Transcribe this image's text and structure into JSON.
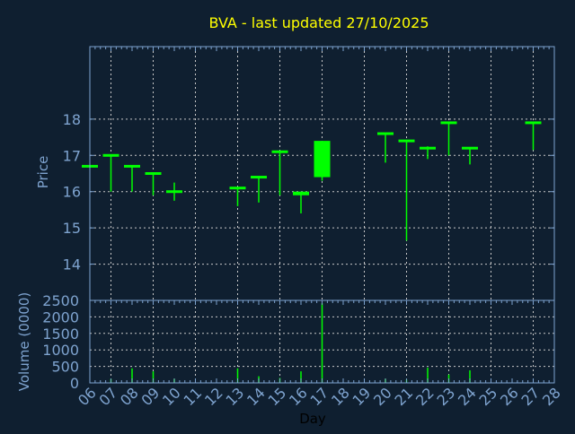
{
  "chart_data": {
    "type": "candlestick",
    "title": "BVA - last updated 27/10/2025",
    "xlabel": "Day",
    "ylabel_price": "Price",
    "ylabel_volume": "Volume (0000)",
    "x_ticks": [
      "06",
      "07",
      "08",
      "09",
      "10",
      "11",
      "12",
      "13",
      "14",
      "15",
      "16",
      "17",
      "18",
      "19",
      "20",
      "21",
      "22",
      "23",
      "24",
      "25",
      "26",
      "27",
      "28"
    ],
    "price_ticks": [
      14,
      15,
      16,
      17,
      18
    ],
    "price_ylim": [
      13,
      20
    ],
    "volume_ticks": [
      0,
      500,
      1000,
      1500,
      2000,
      2500
    ],
    "volume_ylim": [
      0,
      2500
    ],
    "grid": true,
    "colors": {
      "background": "#0f1f30",
      "candle": "#00ff00",
      "axis": "#7ea3cf",
      "grid": "#c8c8c8",
      "title": "#ffff00"
    },
    "candles": [
      {
        "day": "06",
        "open": 16.7,
        "high": 16.7,
        "low": 16.7,
        "close": 16.7
      },
      {
        "day": "07",
        "open": 17.0,
        "high": 17.0,
        "low": 16.0,
        "close": 17.0
      },
      {
        "day": "08",
        "open": 16.7,
        "high": 16.7,
        "low": 16.0,
        "close": 16.7
      },
      {
        "day": "09",
        "open": 16.5,
        "high": 16.5,
        "low": 15.9,
        "close": 16.5
      },
      {
        "day": "10",
        "open": 16.0,
        "high": 16.25,
        "low": 15.75,
        "close": 16.0
      },
      {
        "day": "13",
        "open": 16.1,
        "high": 16.1,
        "low": 15.6,
        "close": 16.1
      },
      {
        "day": "14",
        "open": 16.4,
        "high": 16.4,
        "low": 15.7,
        "close": 16.4
      },
      {
        "day": "15",
        "open": 17.1,
        "high": 17.1,
        "low": 15.9,
        "close": 17.1
      },
      {
        "day": "16",
        "open": 16.0,
        "high": 16.0,
        "low": 15.4,
        "close": 15.9
      },
      {
        "day": "17",
        "open": 16.4,
        "high": 17.4,
        "low": 16.3,
        "close": 17.4
      },
      {
        "day": "20",
        "open": 17.6,
        "high": 17.6,
        "low": 16.8,
        "close": 17.6
      },
      {
        "day": "21",
        "open": 17.4,
        "high": 17.4,
        "low": 14.65,
        "close": 17.4
      },
      {
        "day": "22",
        "open": 17.2,
        "high": 17.25,
        "low": 16.9,
        "close": 17.2
      },
      {
        "day": "23",
        "open": 17.9,
        "high": 17.9,
        "low": 17.0,
        "close": 17.9
      },
      {
        "day": "24",
        "open": 17.2,
        "high": 17.2,
        "low": 16.75,
        "close": 17.2
      },
      {
        "day": "27",
        "open": 17.9,
        "high": 17.9,
        "low": 17.15,
        "close": 17.9
      }
    ],
    "volume": [
      {
        "day": "07",
        "value": 120
      },
      {
        "day": "08",
        "value": 440
      },
      {
        "day": "09",
        "value": 350
      },
      {
        "day": "10",
        "value": 120
      },
      {
        "day": "13",
        "value": 440
      },
      {
        "day": "14",
        "value": 200
      },
      {
        "day": "15",
        "value": 150
      },
      {
        "day": "16",
        "value": 350
      },
      {
        "day": "17",
        "value": 2420
      },
      {
        "day": "20",
        "value": 120
      },
      {
        "day": "21",
        "value": 100
      },
      {
        "day": "22",
        "value": 460
      },
      {
        "day": "23",
        "value": 250
      },
      {
        "day": "24",
        "value": 380
      }
    ]
  }
}
